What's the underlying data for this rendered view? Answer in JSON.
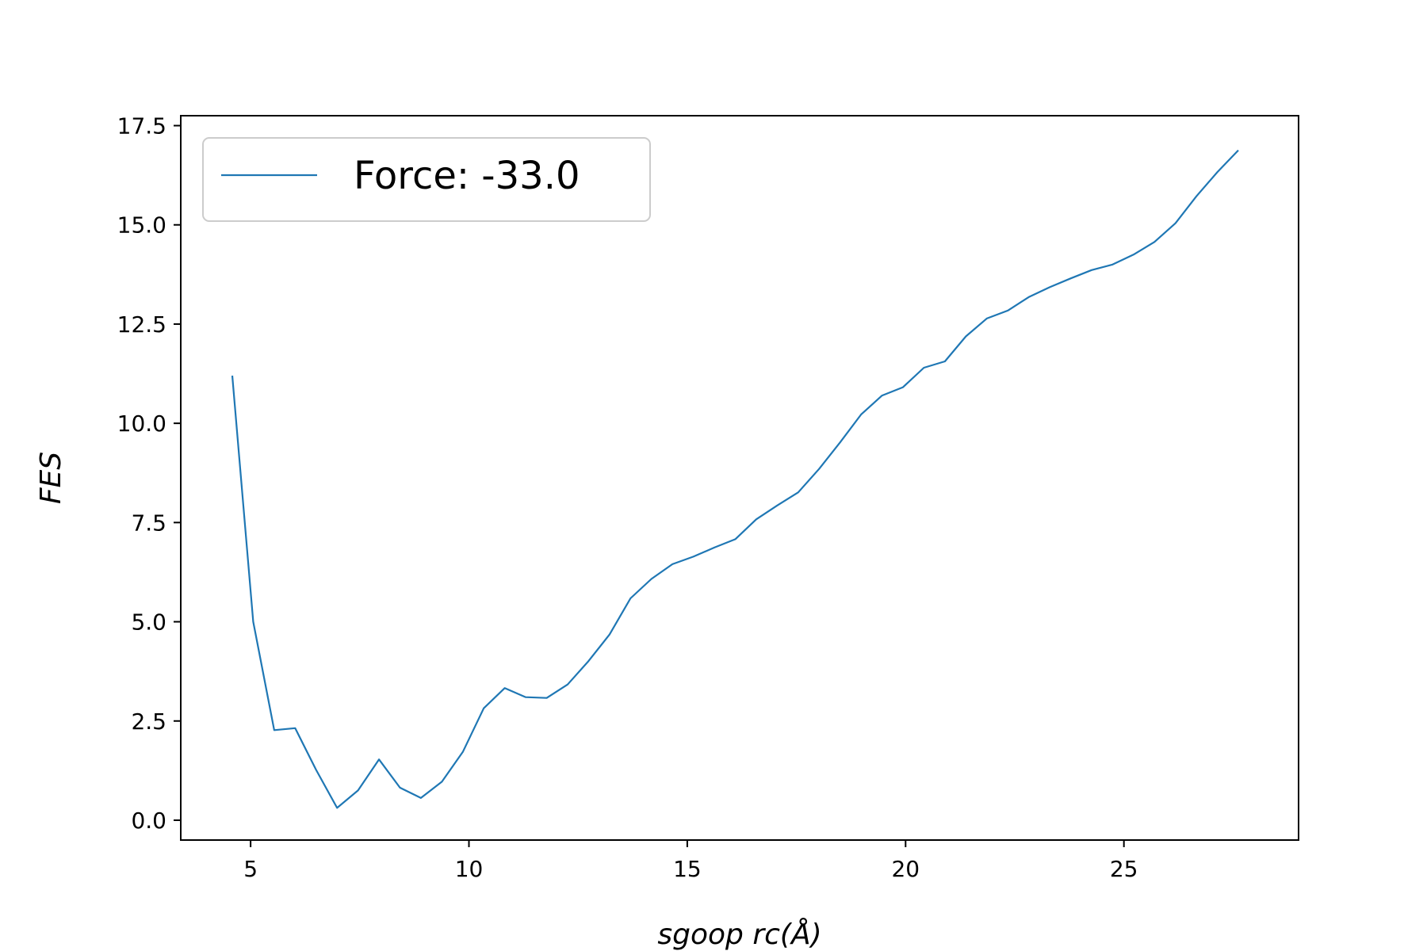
{
  "chart_data": {
    "type": "line",
    "title": "",
    "xlabel": "sgoop rc(Å)",
    "ylabel": "FES",
    "xlim": [
      3.4,
      29.0
    ],
    "ylim": [
      -0.5,
      17.75
    ],
    "xticks": [
      5,
      10,
      15,
      20,
      25
    ],
    "yticks": [
      0.0,
      2.5,
      5.0,
      7.5,
      10.0,
      12.5,
      15.0,
      17.5
    ],
    "xtick_labels": [
      "5",
      "10",
      "15",
      "20",
      "25"
    ],
    "ytick_labels": [
      "0.0",
      "2.5",
      "5.0",
      "7.5",
      "10.0",
      "12.5",
      "15.0",
      "17.5"
    ],
    "legend_position": "upper-left",
    "grid": false,
    "series": [
      {
        "name": "Force: -33.0",
        "color": "#1f77b4",
        "x": [
          4.58,
          5.06,
          5.54,
          6.02,
          6.5,
          6.98,
          7.46,
          7.94,
          8.42,
          8.9,
          9.38,
          9.86,
          10.34,
          10.82,
          11.3,
          11.78,
          12.26,
          12.74,
          13.22,
          13.7,
          14.18,
          14.66,
          15.14,
          15.62,
          16.1,
          16.58,
          17.06,
          17.54,
          18.02,
          18.5,
          18.98,
          19.46,
          19.94,
          20.42,
          20.9,
          21.38,
          21.86,
          22.34,
          22.82,
          23.3,
          23.78,
          24.26,
          24.74,
          25.22,
          25.7,
          26.18,
          26.66,
          27.14,
          27.62
        ],
        "y": [
          11.2,
          5.0,
          2.27,
          2.32,
          1.27,
          0.31,
          0.75,
          1.53,
          0.82,
          0.56,
          0.97,
          1.72,
          2.82,
          3.33,
          3.1,
          3.08,
          3.42,
          4.01,
          4.68,
          5.59,
          6.08,
          6.45,
          6.64,
          6.87,
          7.08,
          7.58,
          7.93,
          8.26,
          8.85,
          9.52,
          10.22,
          10.7,
          10.91,
          11.4,
          11.56,
          12.19,
          12.64,
          12.84,
          13.18,
          13.43,
          13.65,
          13.86,
          14.0,
          14.25,
          14.57,
          15.04,
          15.72,
          16.33,
          16.88
        ]
      }
    ]
  }
}
